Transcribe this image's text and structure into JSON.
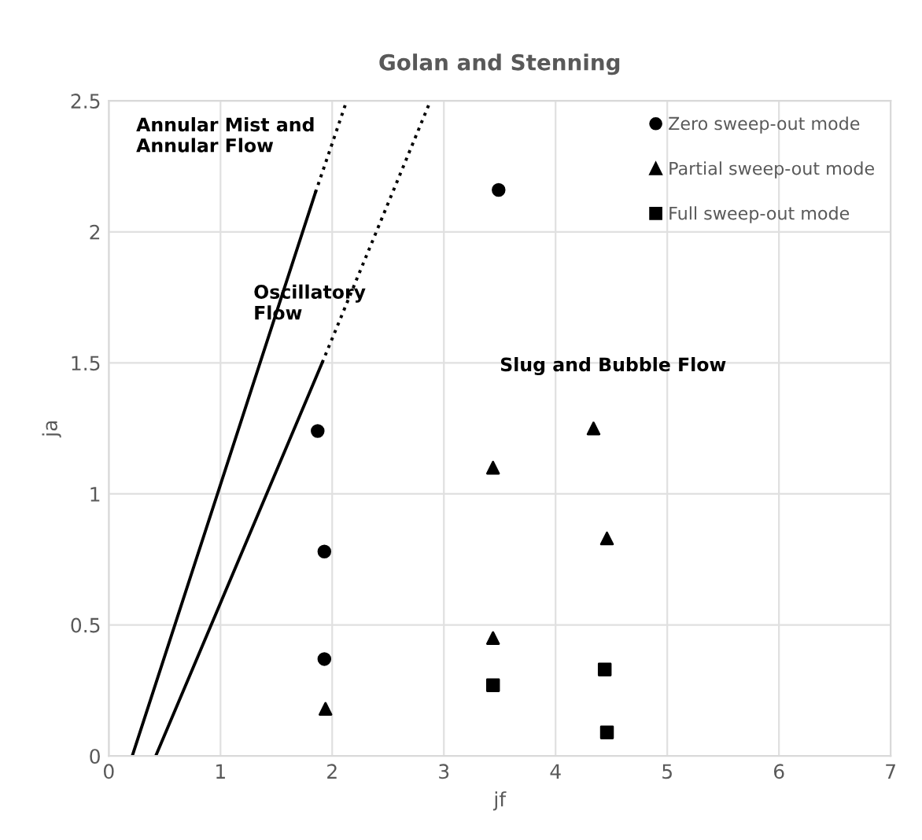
{
  "chart_data": {
    "type": "scatter",
    "title": "Golan and Stenning",
    "xlabel": "jf",
    "ylabel": "ja",
    "xlim": [
      0,
      7
    ],
    "ylim": [
      0,
      2.5
    ],
    "xticks": [
      0,
      1,
      2,
      3,
      4,
      5,
      6,
      7
    ],
    "yticks": [
      0,
      0.5,
      1,
      1.5,
      2,
      2.5
    ],
    "grid": true,
    "legend": "top right",
    "series": [
      {
        "name": "Zero sweep-out mode",
        "color": "#000000",
        "marker": "circle",
        "x": [
          1.87,
          3.49,
          1.93,
          1.93
        ],
        "values": [
          1.24,
          2.16,
          0.78,
          0.37
        ]
      },
      {
        "name": "Partial sweep-out mode",
        "color": "#000000",
        "marker": "triangle",
        "x": [
          1.94,
          4.34,
          3.44,
          4.46,
          3.44
        ],
        "values": [
          0.18,
          1.25,
          1.1,
          0.83,
          0.45
        ]
      },
      {
        "name": "Full sweep-out mode",
        "color": "#000000",
        "marker": "square",
        "x": [
          3.44,
          4.44,
          4.46
        ],
        "values": [
          0.27,
          0.33,
          0.09
        ]
      },
      {
        "type": "line",
        "color": "#000000",
        "line_style": "solid",
        "marker": "none",
        "x": [
          0.21,
          1.85
        ],
        "values": [
          0,
          2.15
        ]
      },
      {
        "type": "line",
        "color": "#000000",
        "line_style": "dotted",
        "marker": "none",
        "x": [
          1.85,
          2.13
        ],
        "values": [
          2.15,
          2.5
        ]
      },
      {
        "type": "line",
        "color": "#000000",
        "line_style": "solid",
        "marker": "none",
        "x": [
          0.42,
          1.91
        ],
        "values": [
          0,
          1.5
        ]
      },
      {
        "type": "line",
        "color": "#000000",
        "line_style": "dotted",
        "marker": "none",
        "x": [
          1.91,
          2.88
        ],
        "values": [
          1.5,
          2.5
        ]
      }
    ],
    "annotations": [
      "Annular Mist and\nAnnular Flow",
      "Oscillatory\nFlow",
      "Slug and Bubble Flow"
    ]
  }
}
